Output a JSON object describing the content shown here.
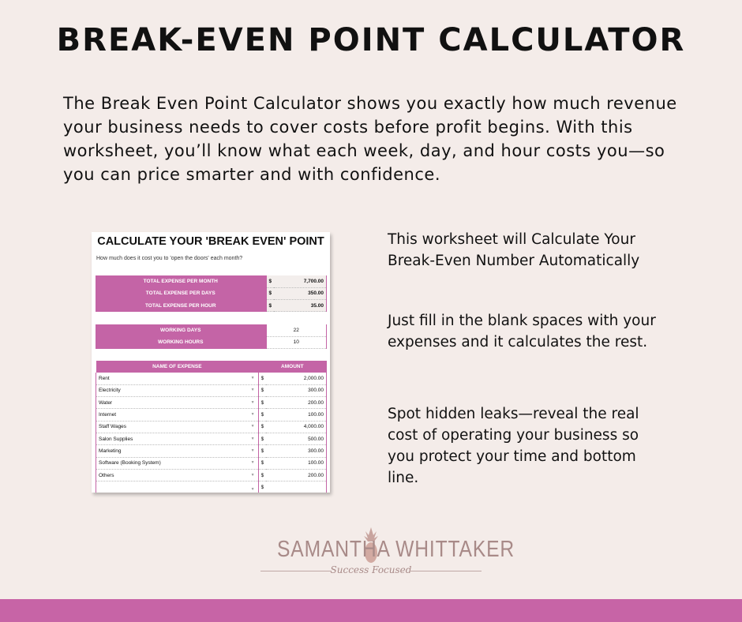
{
  "title": "BREAK-EVEN POINT CALCULATOR",
  "intro": "The Break Even Point Calculator shows you exactly how much revenue your business needs to cover costs before profit begins. With this worksheet, you’ll know what each week, day, and hour costs you—so you can price smarter and with confidence.",
  "side": [
    "This worksheet will Calculate Your Break-Even Number Automatically",
    "Just fill in the blank spaces with your expenses and it calculates the rest.",
    "Spot hidden leaks—reveal the real cost of operating your business so you protect your time and bottom line."
  ],
  "worksheet": {
    "title": "CALCULATE YOUR 'BREAK EVEN' POINT",
    "subtitle": "How much does it cost you to 'open the doors' each month?",
    "currency": "$",
    "summary": [
      {
        "label": "TOTAL EXPENSE PER MONTH",
        "value": "7,700.00"
      },
      {
        "label": "TOTAL EXPENSE PER DAYS",
        "value": "350.00"
      },
      {
        "label": "TOTAL EXPENSE PER HOUR",
        "value": "35.00"
      }
    ],
    "working": [
      {
        "label": "WORKING DAYS",
        "value": "22"
      },
      {
        "label": "WORKING HOURS",
        "value": "10"
      }
    ],
    "expense_headers": [
      "NAME OF EXPENSE",
      "AMOUNT"
    ],
    "expenses": [
      {
        "name": "Rent",
        "amount": "2,000.00"
      },
      {
        "name": "Electricity",
        "amount": "300.00"
      },
      {
        "name": "Water",
        "amount": "200.00"
      },
      {
        "name": "Internet",
        "amount": "100.00"
      },
      {
        "name": "Staff Wages",
        "amount": "4,000.00"
      },
      {
        "name": "Salon Supplies",
        "amount": "500.00"
      },
      {
        "name": "Marketing",
        "amount": "300.00"
      },
      {
        "name": "Software (Booking System)",
        "amount": "100.00"
      },
      {
        "name": "Others",
        "amount": "200.00"
      },
      {
        "name": "",
        "amount": ""
      }
    ]
  },
  "logo": {
    "name": "SAMANTHA WHITTAKER",
    "tagline": "Success Focused"
  },
  "colors": {
    "accent": "#c764a6",
    "background": "#f4ece9",
    "logo": "#a88a88"
  }
}
